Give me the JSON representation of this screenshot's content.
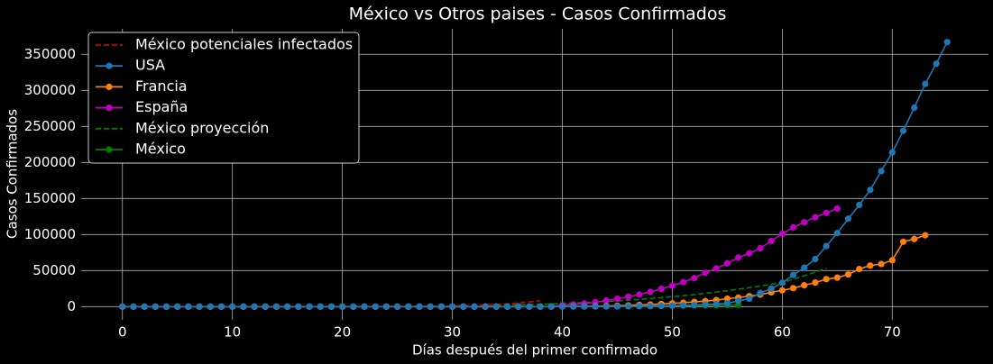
{
  "chart_data": {
    "type": "line",
    "title": "México vs Otros paises - Casos Confirmados",
    "x_label": "Días después del primer confirmado",
    "y_label": "Casos Confirmados",
    "x": [
      0,
      1,
      2,
      3,
      4,
      5,
      6,
      7,
      8,
      9,
      10,
      11,
      12,
      13,
      14,
      15,
      16,
      17,
      18,
      19,
      20,
      21,
      22,
      23,
      24,
      25,
      26,
      27,
      28,
      29,
      30,
      31,
      32,
      33,
      34,
      35,
      36,
      37,
      38,
      39,
      40,
      41,
      42,
      43,
      44,
      45,
      46,
      47,
      48,
      49,
      50,
      51,
      52,
      53,
      54,
      55,
      56,
      57,
      58,
      59,
      60,
      61,
      62,
      63,
      64,
      65,
      66,
      67,
      68,
      69,
      70,
      71,
      72,
      73,
      74,
      75
    ],
    "xlim": [
      -3.75,
      78.75
    ],
    "xticks": [
      0,
      10,
      20,
      30,
      40,
      50,
      60,
      70
    ],
    "ylim": [
      -18350,
      385350
    ],
    "yticks": [
      0,
      50000,
      100000,
      150000,
      200000,
      250000,
      300000,
      350000
    ],
    "grid": true,
    "legend": "upper left",
    "series": [
      {
        "name": "México potenciales infectados",
        "color": "#d00000",
        "linestyle": "dashed",
        "marker": false,
        "values": [
          0,
          0,
          0,
          0,
          0,
          0,
          0,
          0,
          0,
          0,
          0,
          0,
          0,
          0,
          0,
          0,
          0,
          0,
          0,
          0,
          10,
          20,
          40,
          70,
          110,
          170,
          250,
          360,
          500,
          700,
          950,
          1300,
          1750,
          2300,
          3000,
          3900,
          5000,
          6400,
          8100,
          null,
          null,
          null,
          null,
          null,
          null,
          null,
          null,
          null,
          null,
          null,
          null,
          null,
          null,
          null,
          null,
          null,
          null,
          null,
          null,
          null,
          null,
          null,
          null,
          null,
          null,
          null,
          null,
          null,
          null,
          null,
          null,
          null,
          null,
          null,
          null,
          null
        ]
      },
      {
        "name": "USA",
        "color": "#1f77b4",
        "linestyle": "solid",
        "marker": true,
        "values": [
          1,
          1,
          2,
          2,
          5,
          5,
          5,
          5,
          5,
          7,
          8,
          8,
          11,
          11,
          11,
          12,
          12,
          12,
          12,
          12,
          13,
          13,
          14,
          14,
          15,
          15,
          15,
          15,
          15,
          15,
          15,
          15,
          15,
          15,
          15,
          15,
          35,
          35,
          35,
          53,
          75,
          100,
          124,
          158,
          221,
          319,
          435,
          541,
          704,
          994,
          1301,
          1697,
          2247,
          2943,
          3680,
          4663,
          8000,
          11000,
          19000,
          25000,
          33000,
          44000,
          54000,
          66000,
          84000,
          102000,
          122000,
          141000,
          162000,
          188000,
          214000,
          244000,
          276000,
          309000,
          337000,
          367000
        ]
      },
      {
        "name": "Francia",
        "color": "#ff7f0e",
        "linestyle": "solid",
        "marker": true,
        "values": [
          3,
          3,
          3,
          3,
          4,
          5,
          5,
          6,
          6,
          6,
          6,
          6,
          6,
          6,
          6,
          11,
          11,
          11,
          11,
          11,
          11,
          11,
          12,
          12,
          12,
          12,
          12,
          12,
          12,
          12,
          12,
          12,
          12,
          12,
          12,
          12,
          12,
          12,
          14,
          18,
          200,
          280,
          400,
          600,
          900,
          1200,
          1700,
          2300,
          2900,
          3700,
          4500,
          5400,
          6600,
          7700,
          9100,
          11000,
          12600,
          14500,
          16700,
          19900,
          22600,
          25600,
          29600,
          33400,
          38100,
          40200,
          44600,
          52100,
          57000,
          59100,
          64300,
          90000,
          93800,
          99000,
          null,
          null
        ]
      },
      {
        "name": "España",
        "color": "#bf00bf",
        "linestyle": "solid",
        "marker": true,
        "values": [
          1,
          1,
          1,
          1,
          1,
          1,
          1,
          1,
          1,
          2,
          2,
          2,
          2,
          2,
          2,
          2,
          2,
          2,
          2,
          2,
          2,
          2,
          2,
          2,
          2,
          2,
          2,
          2,
          2,
          2,
          2,
          2,
          2,
          2,
          6,
          13,
          15,
          32,
          45,
          84,
          2000,
          3000,
          4300,
          6000,
          8500,
          11000,
          13700,
          16800,
          20400,
          24600,
          29000,
          34000,
          39700,
          47000,
          53000,
          60000,
          68000,
          74000,
          81000,
          91000,
          101000,
          110000,
          117000,
          124000,
          130000,
          136000,
          null,
          null,
          null,
          null,
          null,
          null,
          null,
          null,
          null,
          null
        ]
      },
      {
        "name": "México proyección",
        "color": "#008000",
        "linestyle": "dashed",
        "marker": false,
        "values": [
          0,
          0,
          0,
          0,
          0,
          0,
          0,
          0,
          0,
          0,
          0,
          0,
          0,
          0,
          0,
          0,
          0,
          0,
          0,
          0,
          10,
          20,
          40,
          70,
          110,
          160,
          230,
          320,
          430,
          570,
          730,
          920,
          1140,
          1390,
          1680,
          2000,
          2370,
          2780,
          3240,
          3750,
          4300,
          4920,
          5600,
          6350,
          7170,
          8060,
          9030,
          10080,
          11220,
          12450,
          13780,
          15210,
          16750,
          18400,
          20170,
          22070,
          24100,
          26270,
          28590,
          31070,
          33700,
          38000,
          42800,
          47800,
          53000,
          null,
          null,
          null,
          null,
          null,
          null,
          null,
          null,
          null,
          null,
          null
        ]
      },
      {
        "name": "México",
        "color": "#008000",
        "linestyle": "solid",
        "marker": true,
        "values": [
          1,
          1,
          1,
          1,
          1,
          1,
          1,
          1,
          1,
          1,
          1,
          1,
          1,
          1,
          1,
          1,
          1,
          2,
          2,
          4,
          4,
          5,
          5,
          6,
          6,
          7,
          7,
          7,
          7,
          7,
          12,
          12,
          26,
          41,
          53,
          82,
          93,
          118,
          164,
          203,
          251,
          316,
          367,
          405,
          475,
          585,
          717,
          848,
          993,
          1094,
          1215,
          1378,
          1510,
          1688,
          1890,
          2143,
          2439,
          null,
          null,
          null,
          null,
          null,
          null,
          null,
          null,
          null,
          null,
          null,
          null,
          null,
          null,
          null,
          null,
          null,
          null,
          null
        ]
      }
    ]
  }
}
